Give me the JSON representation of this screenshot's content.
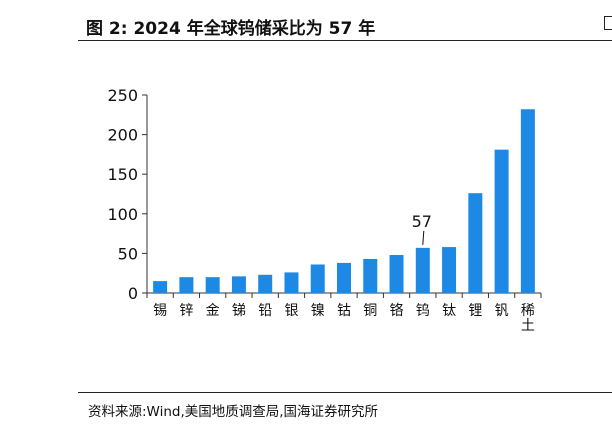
{
  "figure": {
    "title": "图 2:  2024 年全球钨储采比为 57 年",
    "source": "资料来源:Wind,美国地质调查局,国海证券研究所"
  },
  "colors": {
    "bar": "#1E88E5",
    "axis": "#333333",
    "text": "#111111"
  },
  "chart_data": {
    "type": "bar",
    "title": "",
    "xlabel": "",
    "ylabel": "",
    "ylim": [
      0,
      250
    ],
    "yticks": [
      0,
      50,
      100,
      150,
      200,
      250
    ],
    "grid": false,
    "categories": [
      "锡",
      "锌",
      "金",
      "锑",
      "铅",
      "银",
      "镍",
      "钴",
      "铜",
      "铬",
      "钨",
      "钛",
      "锂",
      "钒",
      "稀土"
    ],
    "values": [
      15,
      20,
      20,
      21,
      23,
      26,
      36,
      38,
      43,
      48,
      57,
      58,
      126,
      181,
      232
    ],
    "annotations": [
      {
        "category": "钨",
        "text": "57"
      }
    ]
  }
}
